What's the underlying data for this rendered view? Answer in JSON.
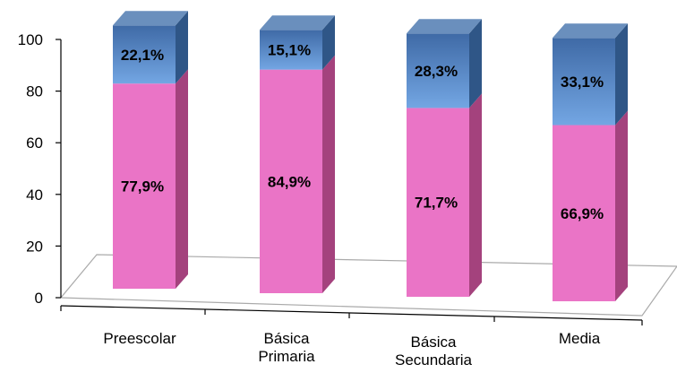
{
  "chart_data": {
    "type": "bar",
    "stacked": true,
    "view": "3d",
    "categories": [
      [
        "Preescolar"
      ],
      [
        "Básica",
        "Primaria"
      ],
      [
        "Básica",
        "Secundaria"
      ],
      [
        "Media"
      ]
    ],
    "series": [
      {
        "values": [
          77.9,
          84.9,
          71.7,
          66.9
        ],
        "labels": [
          "77,9%",
          "84,9%",
          "71,7%",
          "66,9%"
        ],
        "color": "#ea74c6"
      },
      {
        "values": [
          22.1,
          15.1,
          28.3,
          33.1
        ],
        "labels": [
          "22,1%",
          "15,1%",
          "28,3%",
          "33,1%"
        ],
        "color": "#4f7fc0"
      }
    ],
    "yticks": [
      "0",
      "20",
      "40",
      "60",
      "80",
      "100"
    ],
    "ylim": [
      0,
      100
    ],
    "legend": "none",
    "grid": false
  }
}
